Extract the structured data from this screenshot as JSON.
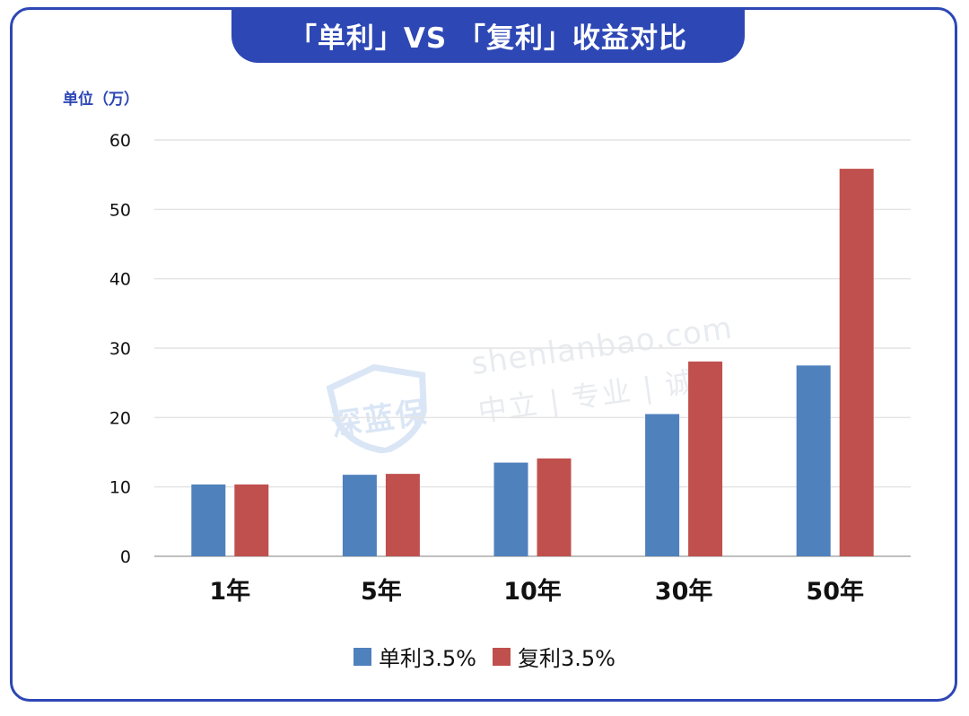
{
  "title": "「单利」VS 「复利」收益对比",
  "unit_label": "单位（万）",
  "watermark": {
    "logo_text": "深蓝保",
    "site": "shenlanbao.com",
    "slogan": "中立 | 专业 | 诚信"
  },
  "colors": {
    "brand": "#2d47b5",
    "simple": "#4f81bd",
    "compound": "#c0504d",
    "grid": "#e4e4e4",
    "axis": "#bfbfbf"
  },
  "chart_data": {
    "type": "bar",
    "title": "「单利」VS 「复利」收益对比",
    "ylabel": "单位（万）",
    "xlabel": "",
    "categories": [
      "1年",
      "5年",
      "10年",
      "30年",
      "50年"
    ],
    "series": [
      {
        "name": "单利3.5%",
        "values": [
          10.35,
          11.75,
          13.5,
          20.5,
          27.5
        ]
      },
      {
        "name": "复利3.5%",
        "values": [
          10.35,
          11.88,
          14.1,
          28.07,
          55.85
        ]
      }
    ],
    "ylim": [
      0,
      60
    ],
    "yticks": [
      "0",
      "10",
      "20",
      "30",
      "40",
      "50",
      "60"
    ],
    "grid": true,
    "legend": "bottom"
  }
}
